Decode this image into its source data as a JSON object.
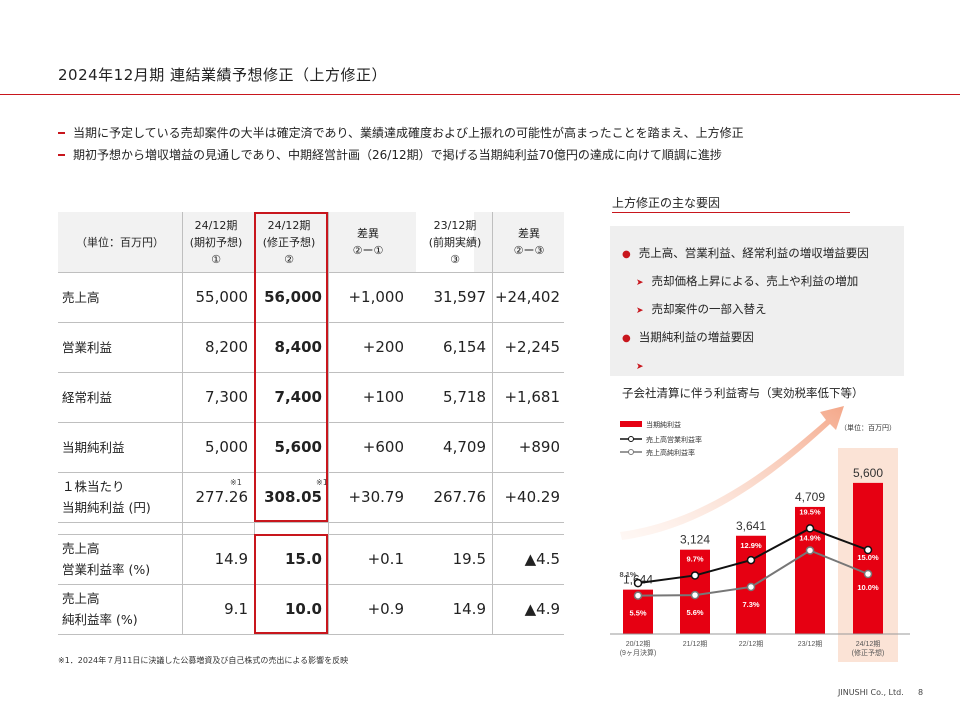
{
  "title": "2024年12月期 連結業績予想修正（上方修正）",
  "bullets": [
    "当期に予定している売却案件の大半は確定済であり、業績達成確度および上振れの可能性が高まったことを踏まえ、上方修正",
    "期初予想から増収増益の見通しであり、中期経営計画（26/12期）で掲げる当期純利益70億円の達成に向けて順調に進捗"
  ],
  "table": {
    "unit_label": "（単位：百万円）",
    "headers": [
      {
        "l1": "24/12期",
        "l2": "(期初予想)",
        "l3": "①"
      },
      {
        "l1": "24/12期",
        "l2": "(修正予想)",
        "l3": "②"
      },
      {
        "l1": "",
        "l2": "差異",
        "l3": "②ー①"
      },
      {
        "l1": "23/12期",
        "l2": "(前期実績)",
        "l3": "③"
      },
      {
        "l1": "",
        "l2": "差異",
        "l3": "②ー③"
      }
    ],
    "rows": [
      {
        "label1": "売上高",
        "label2": "",
        "v": [
          "55,000",
          "56,000",
          "+1,000",
          "31,597",
          "+24,402"
        ]
      },
      {
        "label1": "営業利益",
        "label2": "",
        "v": [
          "8,200",
          "8,400",
          "+200",
          "6,154",
          "+2,245"
        ]
      },
      {
        "label1": "経常利益",
        "label2": "",
        "v": [
          "7,300",
          "7,400",
          "+100",
          "5,718",
          "+1,681"
        ]
      },
      {
        "label1": "当期純利益",
        "label2": "",
        "v": [
          "5,000",
          "5,600",
          "+600",
          "4,709",
          "+890"
        ]
      },
      {
        "label1": "１株当たり",
        "label2": "当期純利益 (円)",
        "v": [
          "277.26",
          "308.05",
          "+30.79",
          "267.76",
          "+40.29"
        ]
      },
      {
        "label1": "売上高",
        "label2": "営業利益率 (%)",
        "v": [
          "14.9",
          "15.0",
          "+0.1",
          "19.5",
          "▲4.5"
        ]
      },
      {
        "label1": "売上高",
        "label2": "純利益率 (%)",
        "v": [
          "9.1",
          "10.0",
          "+0.9",
          "14.9",
          "▲4.9"
        ]
      }
    ],
    "note_mark": "※1"
  },
  "footnote": "※1．2024年７月11日に決議した公募増資及び自己株式の売出による影響を反映",
  "side": {
    "title": "上方修正の主な要因",
    "items": [
      {
        "type": "main",
        "text": "売上高、営業利益、経常利益の増収増益要因"
      },
      {
        "type": "sub",
        "text": "売却価格上昇による、売上や利益の増加"
      },
      {
        "type": "sub",
        "text": "売却案件の一部入替え"
      },
      {
        "type": "main",
        "text": "当期純利益の増益要因"
      },
      {
        "type": "sub",
        "text": "子会社清算に伴う利益寄与（実効税率低下等）"
      }
    ]
  },
  "chart_data": {
    "type": "bar",
    "unit_label": "（単位：百万円）",
    "legend": [
      "当期純利益",
      "売上高営業利益率",
      "売上高純利益率"
    ],
    "categories": [
      "20/12期\n(9ヶ月決算)",
      "21/12期",
      "22/12期",
      "23/12期",
      "24/12期\n(修正予想)"
    ],
    "net_income": [
      1644,
      3124,
      3641,
      4709,
      5600
    ],
    "net_income_labels": [
      "1,644",
      "3,124",
      "3,641",
      "4,709",
      "5,600"
    ],
    "operating_margin": [
      8.1,
      9.7,
      12.9,
      19.5,
      15.0
    ],
    "operating_margin_labels": [
      "8.1%",
      "9.7%",
      "12.9%",
      "19.5%",
      "15.0%"
    ],
    "net_margin": [
      5.5,
      5.6,
      7.3,
      14.9,
      10.0
    ],
    "net_margin_labels": [
      "5.5%",
      "5.6%",
      "7.3%",
      "14.9%",
      "10.0%"
    ],
    "colors": {
      "bar": "#e60012",
      "op_line": "#111111",
      "net_line": "#777777",
      "highlight": "#fbe3d6"
    }
  },
  "footer": {
    "company": "JINUSHI Co., Ltd.",
    "page": "8"
  }
}
